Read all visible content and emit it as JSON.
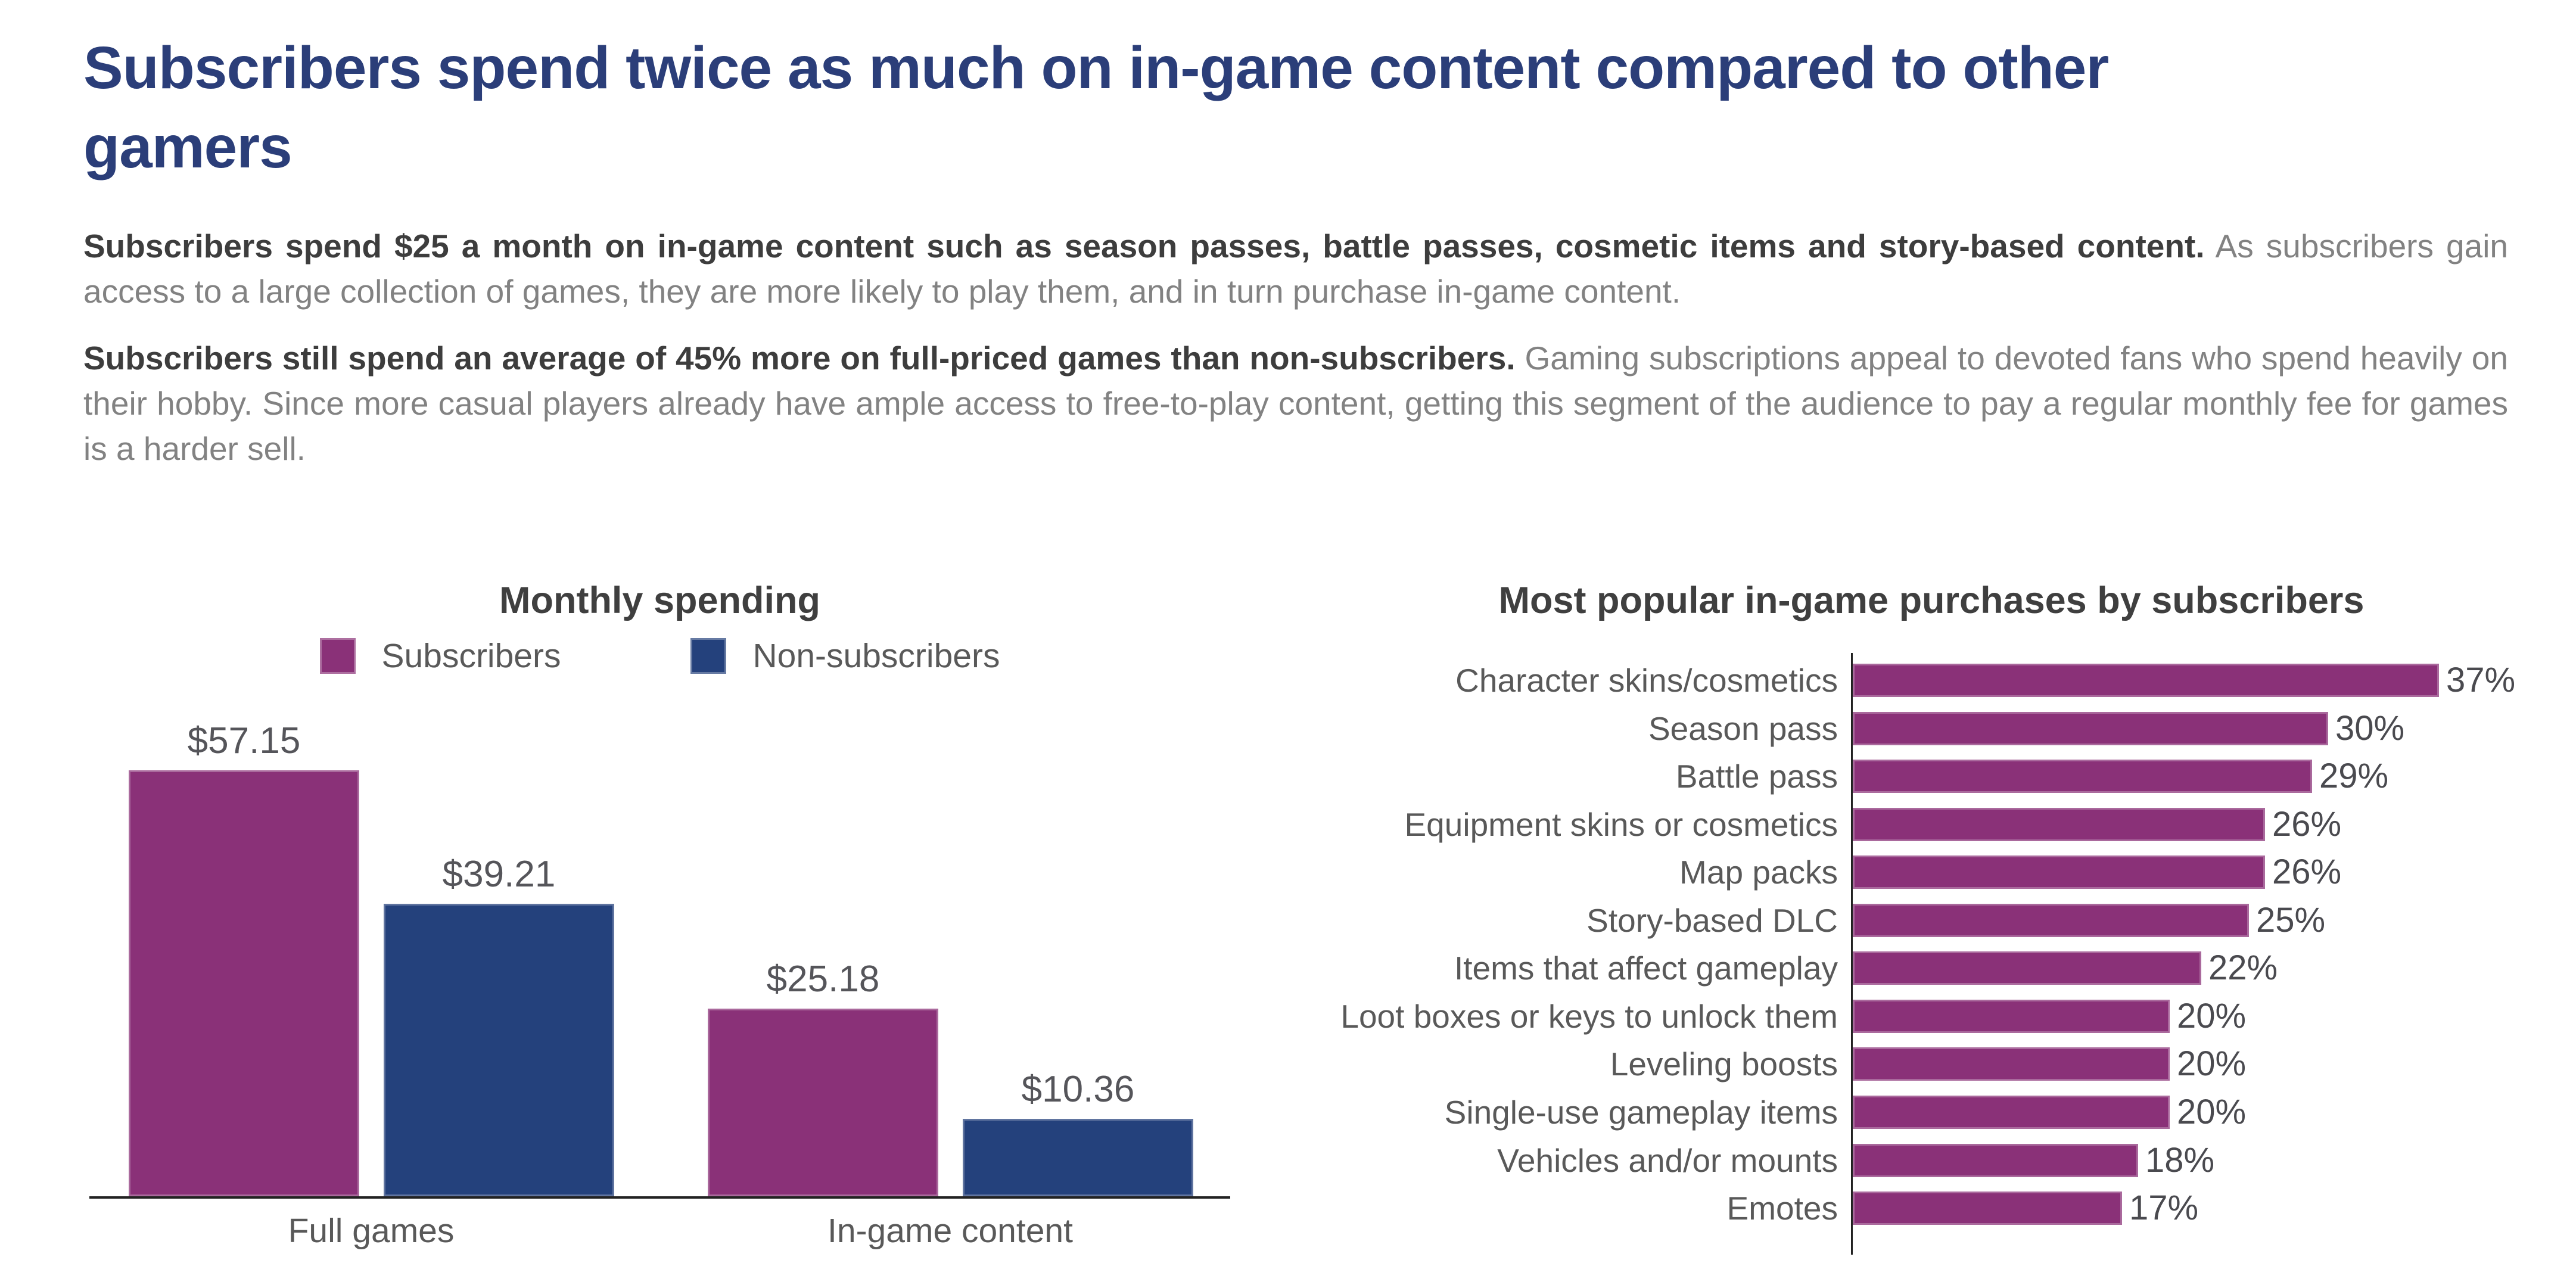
{
  "header": {
    "title_line1": "Subscribers spend twice as much on in-game content compared to other",
    "title_line2": "gamers",
    "title_color": "#2B3E79"
  },
  "paragraphs": [
    {
      "lead": "Subscribers spend $25 a month on in-game content such as season passes, battle passes, cosmetic items and story-based content.",
      "rest": " As subscribers gain access to a large collection of games, they are more likely to play them, and in turn purchase in-game content."
    },
    {
      "lead": "Subscribers still spend an average of 45% more on full-priced games than non-subscribers.",
      "rest": " Gaming subscriptions appeal to devoted fans who spend heavily on their hobby. Since more casual players already have ample access to free-to-play content, getting this segment of the audience to pay a regular monthly fee for games is a harder sell."
    }
  ],
  "colors": {
    "purple": "#8A3178",
    "navy": "#24417C",
    "axis": "#222222",
    "label_gray": "#595959",
    "value_gray": "#55555A"
  },
  "chart_data": [
    {
      "type": "bar",
      "orientation": "vertical",
      "title": "Monthly spending",
      "categories": [
        "Full games",
        "In-game content"
      ],
      "series": [
        {
          "name": "Subscribers",
          "color": "#8A3178",
          "values": [
            57.15,
            25.18
          ],
          "labels": [
            "$57.15",
            "$25.18"
          ]
        },
        {
          "name": "Non-subscribers",
          "color": "#24417C",
          "values": [
            39.21,
            10.36
          ],
          "labels": [
            "$39.21",
            "$10.36"
          ]
        }
      ],
      "ylim": [
        0,
        60
      ],
      "grid": false,
      "legend_position": "top"
    },
    {
      "type": "bar",
      "orientation": "horizontal",
      "title": "Most popular in-game purchases by subscribers",
      "categories": [
        "Character skins/cosmetics",
        "Season pass",
        "Battle pass",
        "Equipment skins or cosmetics",
        "Map packs",
        "Story-based DLC",
        "Items that affect gameplay",
        "Loot boxes or keys to unlock them",
        "Leveling boosts",
        "Single-use gameplay items",
        "Vehicles and/or mounts",
        "Emotes"
      ],
      "values": [
        37,
        30,
        29,
        26,
        26,
        25,
        22,
        20,
        20,
        20,
        18,
        17
      ],
      "labels": [
        "37%",
        "30%",
        "29%",
        "26%",
        "26%",
        "25%",
        "22%",
        "20%",
        "20%",
        "20%",
        "18%",
        "17%"
      ],
      "bar_color": "#8A3178",
      "xlim": [
        0,
        40
      ],
      "grid": false
    }
  ]
}
